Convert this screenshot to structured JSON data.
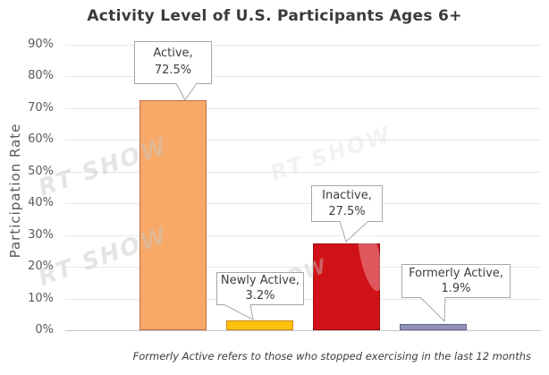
{
  "chart_data": {
    "type": "bar",
    "title": "Activity Level of U.S. Participants Ages 6+",
    "ylabel": "Participation Rate",
    "xlabel": "",
    "categories": [
      "Active",
      "Newly Active",
      "Inactive",
      "Formerly Active"
    ],
    "values": [
      72.5,
      3.2,
      27.5,
      1.9
    ],
    "ylim": [
      0,
      90
    ],
    "ytick_step": 10,
    "yticks": [
      "0%",
      "10%",
      "20%",
      "30%",
      "40%",
      "50%",
      "60%",
      "70%",
      "80%",
      "90%"
    ],
    "grid": true,
    "legend": "none",
    "bar_colors": [
      {
        "fill": "#F8A968",
        "border": "#BC6E44"
      },
      {
        "fill": "#FDC00F",
        "border": "#C8881C"
      },
      {
        "fill": "#D01117",
        "border": "#9A0C10"
      },
      {
        "fill": "#9191B9",
        "border": "#63638E"
      }
    ],
    "callouts": [
      {
        "line1": "Active,",
        "line2": "72.5%"
      },
      {
        "line1": "Newly Active,",
        "line2": "3.2%"
      },
      {
        "line1": "Inactive,",
        "line2": "27.5%"
      },
      {
        "line1": "Formerly Active,",
        "line2": "1.9%"
      }
    ],
    "footnote": "Formerly Active refers to those who stopped exercising in the last 12 months"
  },
  "watermark": {
    "fragments": [
      "RT SHOW",
      "RT SHOW",
      "RT SHOW",
      "OW"
    ]
  }
}
